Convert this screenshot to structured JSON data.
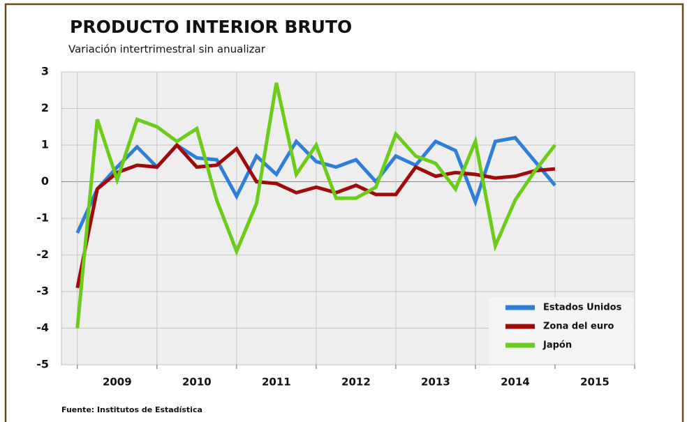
{
  "chart_data": {
    "type": "line",
    "title": "PRODUCTO INTERIOR BRUTO",
    "subtitle": "Variación intertrimestral sin anualizar",
    "source": "Fuente: Institutos de Estadística",
    "x": [
      2009,
      2009.25,
      2009.5,
      2009.75,
      2010,
      2010.25,
      2010.5,
      2010.75,
      2011,
      2011.25,
      2011.5,
      2011.75,
      2012,
      2012.25,
      2012.5,
      2012.75,
      2013,
      2013.25,
      2013.5,
      2013.75,
      2014,
      2014.25,
      2014.5,
      2014.75,
      2015
    ],
    "xlim": [
      2008.8,
      2016
    ],
    "xgrid": [
      2009,
      2010,
      2011,
      2012,
      2013,
      2014,
      2015,
      2016
    ],
    "xticks": [
      {
        "value": 2009.5,
        "label": "2009"
      },
      {
        "value": 2010.5,
        "label": "2010"
      },
      {
        "value": 2011.5,
        "label": "2011"
      },
      {
        "value": 2012.5,
        "label": "2012"
      },
      {
        "value": 2013.5,
        "label": "2013"
      },
      {
        "value": 2014.5,
        "label": "2014"
      },
      {
        "value": 2015.5,
        "label": "2015"
      }
    ],
    "ylim": [
      -5,
      3
    ],
    "yticks": [
      -5,
      -4,
      -3,
      -2,
      -1,
      0,
      1,
      2,
      3
    ],
    "grid": true,
    "legend": "lower right",
    "series": [
      {
        "name": "Estados Unidos",
        "color": "#2f7fd8",
        "values": [
          -1.4,
          -0.2,
          0.4,
          0.95,
          0.4,
          1.0,
          0.65,
          0.6,
          -0.4,
          0.7,
          0.2,
          1.1,
          0.55,
          0.4,
          0.6,
          0.0,
          0.7,
          0.45,
          1.1,
          0.85,
          -0.55,
          1.1,
          1.2,
          0.55,
          -0.1
        ]
      },
      {
        "name": "Zona del euro",
        "color": "#a00a0a",
        "values": [
          -2.9,
          -0.2,
          0.25,
          0.45,
          0.4,
          1.0,
          0.4,
          0.45,
          0.9,
          0.0,
          -0.05,
          -0.3,
          -0.15,
          -0.3,
          -0.1,
          -0.35,
          -0.35,
          0.4,
          0.15,
          0.25,
          0.2,
          0.1,
          0.15,
          0.3,
          0.35
        ]
      },
      {
        "name": "Japón",
        "color": "#6ccc1a",
        "values": [
          -4.0,
          1.7,
          0.05,
          1.7,
          1.5,
          1.1,
          1.45,
          -0.5,
          -1.9,
          -0.6,
          2.7,
          0.2,
          1.0,
          -0.45,
          -0.45,
          -0.15,
          1.3,
          0.7,
          0.5,
          -0.2,
          1.1,
          -1.75,
          -0.5,
          0.3,
          1.0
        ]
      }
    ]
  }
}
